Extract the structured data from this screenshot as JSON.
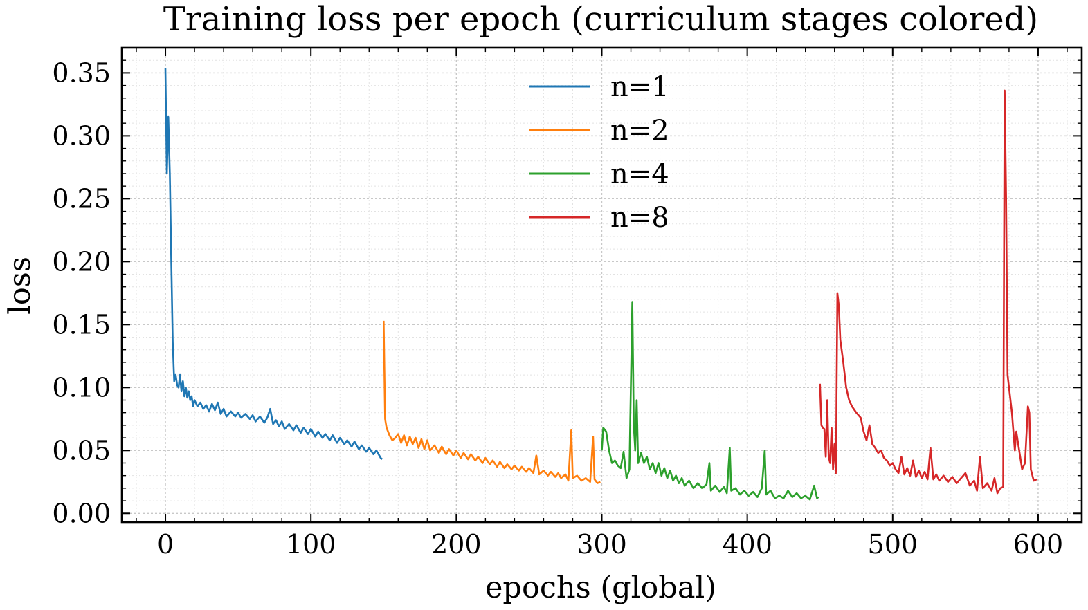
{
  "chart_data": {
    "type": "line",
    "title": "Training loss per epoch (curriculum stages colored)",
    "xlabel": "epochs (global)",
    "ylabel": "loss",
    "xlim": [
      -30,
      630
    ],
    "ylim": [
      -0.007,
      0.37
    ],
    "xticks": [
      0,
      100,
      200,
      300,
      400,
      500,
      600
    ],
    "yticks": [
      0.0,
      0.05,
      0.1,
      0.15,
      0.2,
      0.25,
      0.3,
      0.35
    ],
    "grid": true,
    "legend_position": "top-center",
    "series": [
      {
        "name": "n=1",
        "color": "#1f77b4",
        "points": [
          [
            0,
            0.354
          ],
          [
            1,
            0.27
          ],
          [
            2,
            0.315
          ],
          [
            3,
            0.27
          ],
          [
            4,
            0.2
          ],
          [
            5,
            0.136
          ],
          [
            6,
            0.105
          ],
          [
            7,
            0.11
          ],
          [
            8,
            0.102
          ],
          [
            9,
            0.1
          ],
          [
            10,
            0.11
          ],
          [
            11,
            0.097
          ],
          [
            12,
            0.105
          ],
          [
            13,
            0.093
          ],
          [
            14,
            0.1
          ],
          [
            15,
            0.092
          ],
          [
            16,
            0.097
          ],
          [
            17,
            0.09
          ],
          [
            18,
            0.093
          ],
          [
            19,
            0.085
          ],
          [
            20,
            0.09
          ],
          [
            22,
            0.085
          ],
          [
            24,
            0.088
          ],
          [
            26,
            0.083
          ],
          [
            28,
            0.086
          ],
          [
            30,
            0.081
          ],
          [
            32,
            0.087
          ],
          [
            34,
            0.082
          ],
          [
            36,
            0.088
          ],
          [
            38,
            0.079
          ],
          [
            40,
            0.083
          ],
          [
            42,
            0.077
          ],
          [
            45,
            0.081
          ],
          [
            48,
            0.077
          ],
          [
            50,
            0.08
          ],
          [
            52,
            0.076
          ],
          [
            55,
            0.079
          ],
          [
            58,
            0.075
          ],
          [
            60,
            0.078
          ],
          [
            62,
            0.073
          ],
          [
            65,
            0.077
          ],
          [
            68,
            0.072
          ],
          [
            70,
            0.076
          ],
          [
            72,
            0.083
          ],
          [
            74,
            0.071
          ],
          [
            76,
            0.074
          ],
          [
            78,
            0.069
          ],
          [
            80,
            0.073
          ],
          [
            82,
            0.067
          ],
          [
            85,
            0.071
          ],
          [
            88,
            0.066
          ],
          [
            90,
            0.07
          ],
          [
            93,
            0.064
          ],
          [
            95,
            0.068
          ],
          [
            98,
            0.063
          ],
          [
            100,
            0.067
          ],
          [
            103,
            0.061
          ],
          [
            105,
            0.065
          ],
          [
            108,
            0.06
          ],
          [
            110,
            0.063
          ],
          [
            113,
            0.058
          ],
          [
            115,
            0.062
          ],
          [
            118,
            0.056
          ],
          [
            120,
            0.06
          ],
          [
            123,
            0.055
          ],
          [
            125,
            0.058
          ],
          [
            128,
            0.053
          ],
          [
            130,
            0.057
          ],
          [
            133,
            0.051
          ],
          [
            135,
            0.054
          ],
          [
            138,
            0.049
          ],
          [
            140,
            0.052
          ],
          [
            143,
            0.047
          ],
          [
            145,
            0.05
          ],
          [
            148,
            0.044
          ],
          [
            149,
            0.043
          ]
        ]
      },
      {
        "name": "n=2",
        "color": "#ff7f0e",
        "points": [
          [
            150,
            0.153
          ],
          [
            151,
            0.075
          ],
          [
            152,
            0.068
          ],
          [
            154,
            0.062
          ],
          [
            156,
            0.058
          ],
          [
            158,
            0.06
          ],
          [
            160,
            0.063
          ],
          [
            162,
            0.056
          ],
          [
            164,
            0.062
          ],
          [
            166,
            0.054
          ],
          [
            168,
            0.061
          ],
          [
            170,
            0.055
          ],
          [
            172,
            0.06
          ],
          [
            174,
            0.052
          ],
          [
            176,
            0.059
          ],
          [
            178,
            0.051
          ],
          [
            180,
            0.058
          ],
          [
            182,
            0.05
          ],
          [
            185,
            0.054
          ],
          [
            188,
            0.048
          ],
          [
            190,
            0.053
          ],
          [
            193,
            0.047
          ],
          [
            195,
            0.051
          ],
          [
            198,
            0.046
          ],
          [
            200,
            0.05
          ],
          [
            203,
            0.044
          ],
          [
            205,
            0.048
          ],
          [
            208,
            0.043
          ],
          [
            210,
            0.047
          ],
          [
            213,
            0.042
          ],
          [
            215,
            0.045
          ],
          [
            218,
            0.04
          ],
          [
            220,
            0.044
          ],
          [
            223,
            0.039
          ],
          [
            225,
            0.042
          ],
          [
            228,
            0.037
          ],
          [
            230,
            0.041
          ],
          [
            233,
            0.036
          ],
          [
            235,
            0.039
          ],
          [
            238,
            0.035
          ],
          [
            240,
            0.038
          ],
          [
            243,
            0.034
          ],
          [
            245,
            0.037
          ],
          [
            248,
            0.033
          ],
          [
            250,
            0.036
          ],
          [
            253,
            0.032
          ],
          [
            255,
            0.046
          ],
          [
            257,
            0.031
          ],
          [
            260,
            0.034
          ],
          [
            263,
            0.03
          ],
          [
            265,
            0.033
          ],
          [
            268,
            0.029
          ],
          [
            270,
            0.032
          ],
          [
            272,
            0.028
          ],
          [
            275,
            0.031
          ],
          [
            277,
            0.026
          ],
          [
            279,
            0.066
          ],
          [
            280,
            0.028
          ],
          [
            283,
            0.03
          ],
          [
            286,
            0.026
          ],
          [
            289,
            0.028
          ],
          [
            292,
            0.025
          ],
          [
            294,
            0.061
          ],
          [
            295,
            0.027
          ],
          [
            297,
            0.024
          ],
          [
            299,
            0.025
          ]
        ]
      },
      {
        "name": "n=4",
        "color": "#2ca02c",
        "points": [
          [
            300,
            0.05
          ],
          [
            301,
            0.068
          ],
          [
            303,
            0.065
          ],
          [
            305,
            0.05
          ],
          [
            307,
            0.04
          ],
          [
            309,
            0.042
          ],
          [
            311,
            0.038
          ],
          [
            313,
            0.036
          ],
          [
            315,
            0.049
          ],
          [
            317,
            0.028
          ],
          [
            319,
            0.035
          ],
          [
            321,
            0.168
          ],
          [
            322,
            0.07
          ],
          [
            323,
            0.05
          ],
          [
            324,
            0.09
          ],
          [
            325,
            0.04
          ],
          [
            327,
            0.048
          ],
          [
            329,
            0.04
          ],
          [
            331,
            0.045
          ],
          [
            333,
            0.035
          ],
          [
            335,
            0.04
          ],
          [
            337,
            0.032
          ],
          [
            339,
            0.04
          ],
          [
            341,
            0.03
          ],
          [
            343,
            0.036
          ],
          [
            345,
            0.028
          ],
          [
            347,
            0.034
          ],
          [
            349,
            0.026
          ],
          [
            351,
            0.03
          ],
          [
            353,
            0.024
          ],
          [
            355,
            0.028
          ],
          [
            357,
            0.022
          ],
          [
            360,
            0.026
          ],
          [
            363,
            0.02
          ],
          [
            366,
            0.024
          ],
          [
            369,
            0.02
          ],
          [
            372,
            0.023
          ],
          [
            374,
            0.04
          ],
          [
            375,
            0.018
          ],
          [
            378,
            0.022
          ],
          [
            381,
            0.017
          ],
          [
            384,
            0.021
          ],
          [
            386,
            0.016
          ],
          [
            388,
            0.052
          ],
          [
            389,
            0.018
          ],
          [
            392,
            0.02
          ],
          [
            395,
            0.015
          ],
          [
            398,
            0.018
          ],
          [
            401,
            0.014
          ],
          [
            404,
            0.017
          ],
          [
            407,
            0.013
          ],
          [
            410,
            0.02
          ],
          [
            412,
            0.05
          ],
          [
            413,
            0.015
          ],
          [
            416,
            0.018
          ],
          [
            419,
            0.012
          ],
          [
            422,
            0.014
          ],
          [
            425,
            0.012
          ],
          [
            428,
            0.018
          ],
          [
            431,
            0.013
          ],
          [
            434,
            0.016
          ],
          [
            437,
            0.012
          ],
          [
            440,
            0.014
          ],
          [
            443,
            0.011
          ],
          [
            446,
            0.022
          ],
          [
            448,
            0.012
          ],
          [
            449,
            0.013
          ]
        ]
      },
      {
        "name": "n=8",
        "color": "#d62728",
        "points": [
          [
            450,
            0.103
          ],
          [
            451,
            0.07
          ],
          [
            452,
            0.068
          ],
          [
            453,
            0.067
          ],
          [
            454,
            0.045
          ],
          [
            455,
            0.09
          ],
          [
            456,
            0.045
          ],
          [
            457,
            0.04
          ],
          [
            458,
            0.068
          ],
          [
            459,
            0.035
          ],
          [
            460,
            0.055
          ],
          [
            461,
            0.032
          ],
          [
            462,
            0.175
          ],
          [
            463,
            0.165
          ],
          [
            464,
            0.138
          ],
          [
            466,
            0.12
          ],
          [
            468,
            0.1
          ],
          [
            470,
            0.09
          ],
          [
            472,
            0.085
          ],
          [
            475,
            0.08
          ],
          [
            478,
            0.076
          ],
          [
            480,
            0.065
          ],
          [
            482,
            0.058
          ],
          [
            484,
            0.07
          ],
          [
            486,
            0.055
          ],
          [
            488,
            0.052
          ],
          [
            490,
            0.048
          ],
          [
            492,
            0.05
          ],
          [
            494,
            0.044
          ],
          [
            496,
            0.042
          ],
          [
            498,
            0.038
          ],
          [
            500,
            0.04
          ],
          [
            502,
            0.035
          ],
          [
            504,
            0.032
          ],
          [
            506,
            0.045
          ],
          [
            508,
            0.031
          ],
          [
            510,
            0.036
          ],
          [
            512,
            0.03
          ],
          [
            514,
            0.042
          ],
          [
            516,
            0.029
          ],
          [
            518,
            0.034
          ],
          [
            520,
            0.028
          ],
          [
            522,
            0.033
          ],
          [
            524,
            0.027
          ],
          [
            526,
            0.052
          ],
          [
            528,
            0.027
          ],
          [
            530,
            0.031
          ],
          [
            532,
            0.026
          ],
          [
            535,
            0.03
          ],
          [
            538,
            0.025
          ],
          [
            541,
            0.029
          ],
          [
            544,
            0.024
          ],
          [
            547,
            0.028
          ],
          [
            550,
            0.032
          ],
          [
            553,
            0.022
          ],
          [
            556,
            0.026
          ],
          [
            558,
            0.018
          ],
          [
            560,
            0.045
          ],
          [
            562,
            0.02
          ],
          [
            565,
            0.024
          ],
          [
            568,
            0.018
          ],
          [
            570,
            0.028
          ],
          [
            572,
            0.016
          ],
          [
            574,
            0.02
          ],
          [
            576,
            0.021
          ],
          [
            577,
            0.336
          ],
          [
            578,
            0.25
          ],
          [
            579,
            0.11
          ],
          [
            580,
            0.1
          ],
          [
            582,
            0.08
          ],
          [
            584,
            0.05
          ],
          [
            585,
            0.065
          ],
          [
            587,
            0.05
          ],
          [
            589,
            0.035
          ],
          [
            591,
            0.04
          ],
          [
            593,
            0.085
          ],
          [
            594,
            0.08
          ],
          [
            595,
            0.035
          ],
          [
            597,
            0.026
          ],
          [
            599,
            0.027
          ]
        ]
      }
    ]
  }
}
